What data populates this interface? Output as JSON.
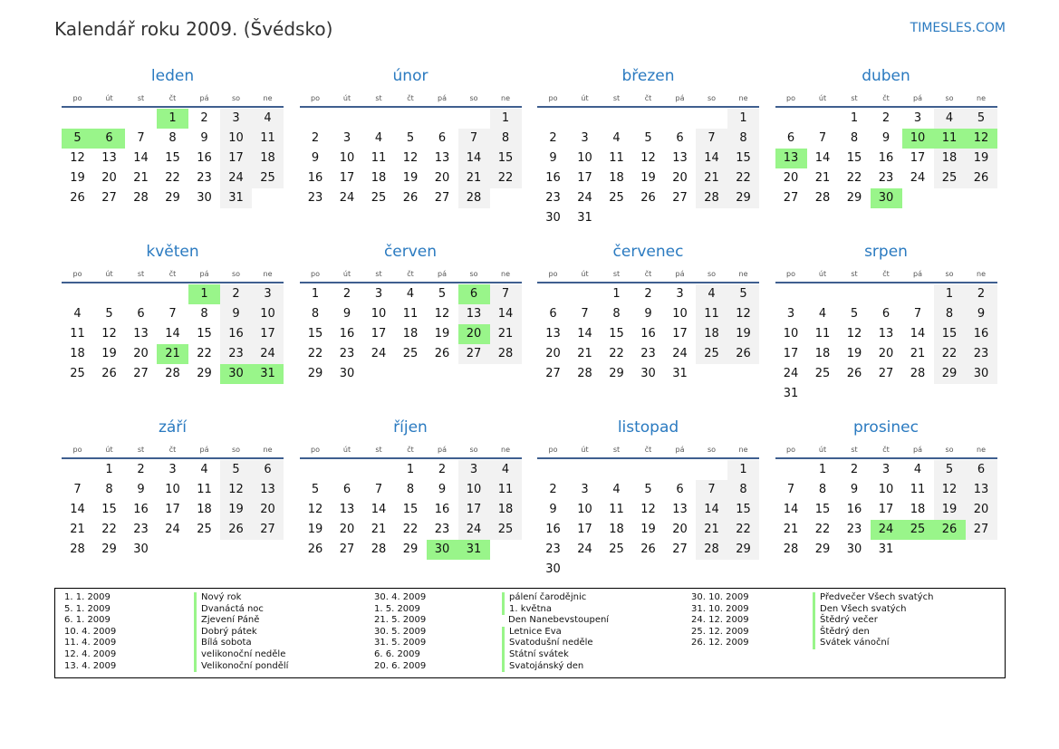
{
  "header": {
    "title": "Kalendář roku 2009. (Švédsko)",
    "brand": "TIMESLES.COM"
  },
  "calendar": {
    "year": 2009,
    "weekdays": [
      "po",
      "út",
      "st",
      "čt",
      "pá",
      "so",
      "ne"
    ],
    "months": [
      "leden",
      "únor",
      "březen",
      "duben",
      "květen",
      "červen",
      "červenec",
      "srpen",
      "září",
      "říjen",
      "listopad",
      "prosinec"
    ],
    "highlighted_dates": [
      "1-1",
      "1-5",
      "1-6",
      "4-10",
      "4-11",
      "4-12",
      "4-13",
      "4-30",
      "5-1",
      "5-21",
      "5-30",
      "5-31",
      "6-6",
      "6-20",
      "10-30",
      "10-31",
      "12-24",
      "12-25",
      "12-26"
    ],
    "colors": {
      "holiday": "#99f58a",
      "weekend": "#f2f2f2",
      "accent": "#2a7ac0",
      "rule": "#3f5f8f"
    }
  },
  "legend": {
    "columns": [
      [
        {
          "date": "1. 1. 2009",
          "name": "Nový rok",
          "bar": true
        },
        {
          "date": "5. 1. 2009",
          "name": "Dvanáctá noc",
          "bar": true
        },
        {
          "date": "6. 1. 2009",
          "name": "Zjevení Páně",
          "bar": true
        },
        {
          "date": "10. 4. 2009",
          "name": "Dobrý pátek",
          "bar": true
        },
        {
          "date": "11. 4. 2009",
          "name": "Bílá sobota",
          "bar": true
        },
        {
          "date": "12. 4. 2009",
          "name": "velikonoční neděle",
          "bar": true
        },
        {
          "date": "13. 4. 2009",
          "name": "Velikonoční pondělí",
          "bar": true
        }
      ],
      [
        {
          "date": "30. 4. 2009",
          "name": "pálení čarodějnic",
          "bar": true
        },
        {
          "date": "1. 5. 2009",
          "name": "1. května",
          "bar": true
        },
        {
          "date": "21. 5. 2009",
          "name": "Den Nanebevstoupení",
          "bar": false
        },
        {
          "date": "30. 5. 2009",
          "name": "Letnice Eva",
          "bar": true
        },
        {
          "date": "31. 5. 2009",
          "name": "Svatodušní neděle",
          "bar": true
        },
        {
          "date": "6. 6. 2009",
          "name": "Státní svátek",
          "bar": true
        },
        {
          "date": "20. 6. 2009",
          "name": "Svatojánský den",
          "bar": true
        }
      ],
      [
        {
          "date": "30. 10. 2009",
          "name": "Předvečer Všech svatých",
          "bar": true
        },
        {
          "date": "31. 10. 2009",
          "name": "Den Všech svatých",
          "bar": true
        },
        {
          "date": "24. 12. 2009",
          "name": "Štědrý večer",
          "bar": true
        },
        {
          "date": "25. 12. 2009",
          "name": "Štědrý den",
          "bar": true
        },
        {
          "date": "26. 12. 2009",
          "name": "Svátek vánoční",
          "bar": true
        }
      ]
    ]
  }
}
